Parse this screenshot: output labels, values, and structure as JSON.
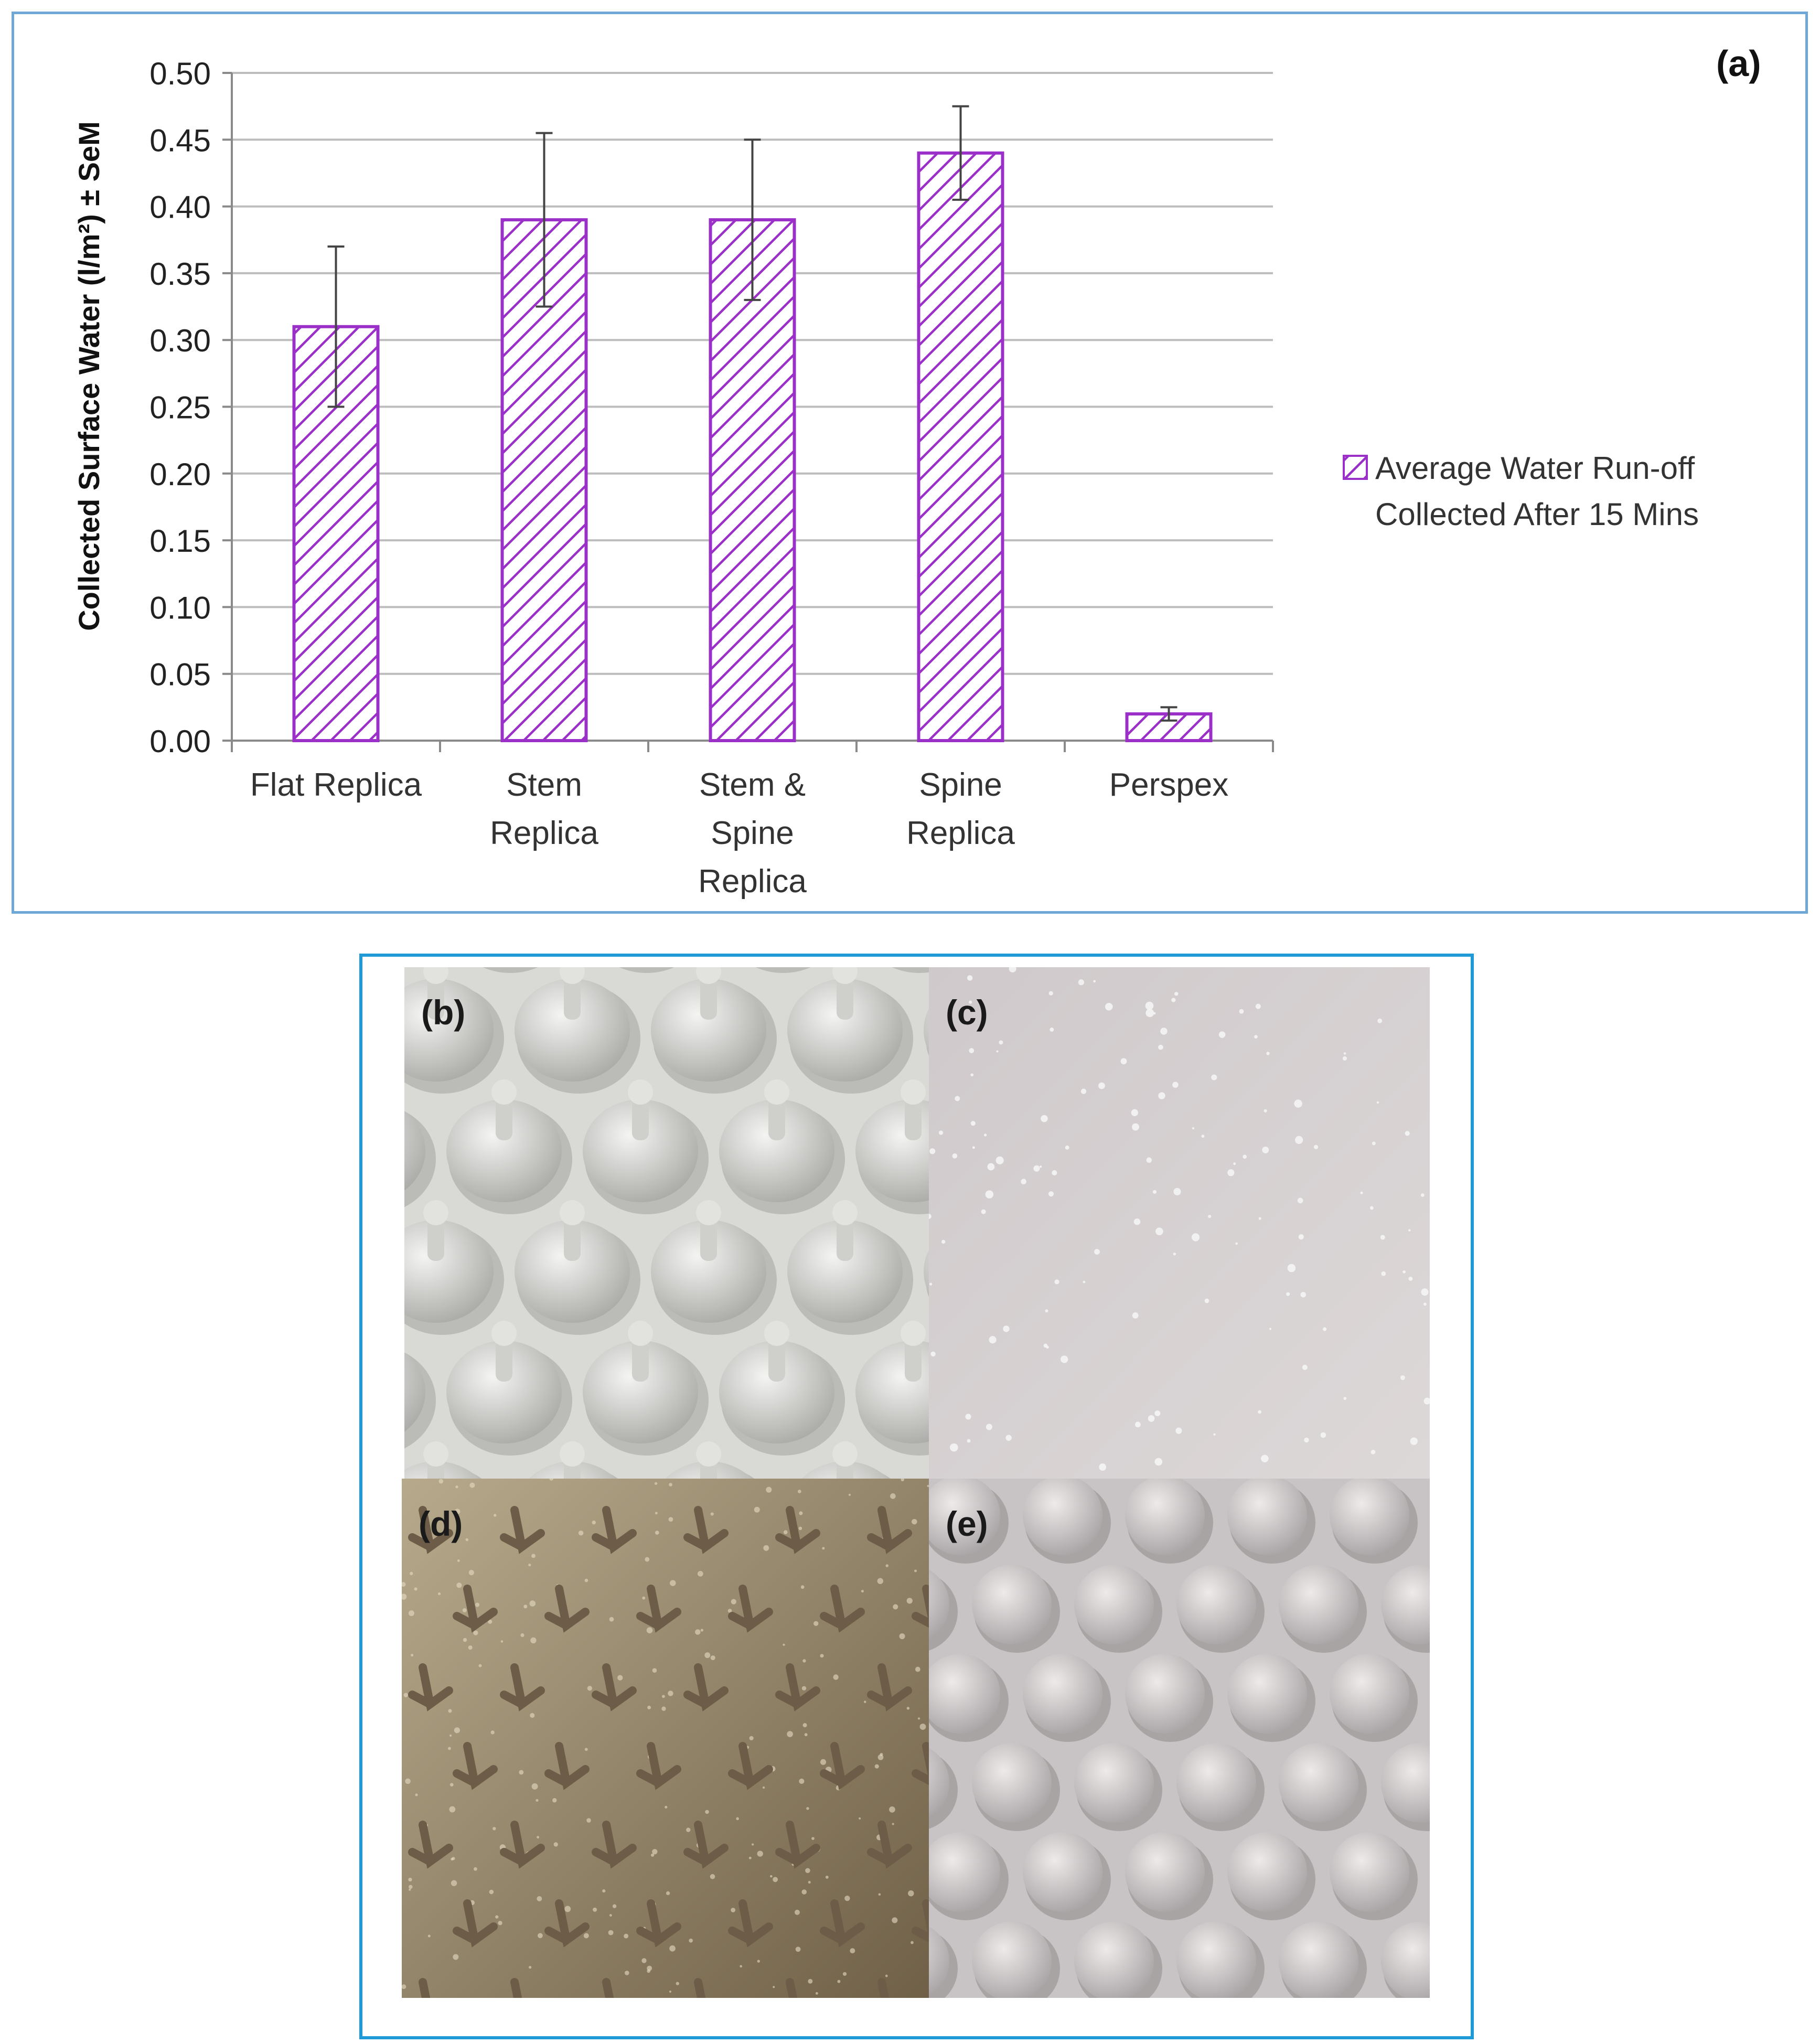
{
  "chart_data": {
    "type": "bar",
    "panel_label": "(a)",
    "ylabel": "Collected Surface Water (l/m²) ± SeM",
    "xlabel": "",
    "ylim": [
      0,
      0.5
    ],
    "y_ticks": [
      "0.00",
      "0.05",
      "0.10",
      "0.15",
      "0.20",
      "0.25",
      "0.30",
      "0.35",
      "0.40",
      "0.45",
      "0.50"
    ],
    "tick_values": [
      0,
      0.05,
      0.1,
      0.15,
      0.2,
      0.25,
      0.3,
      0.35,
      0.4,
      0.45,
      0.5
    ],
    "grid": true,
    "legend_position": "right",
    "categories": [
      [
        "Flat Replica"
      ],
      [
        "Stem",
        "Replica"
      ],
      [
        "Stem &",
        "Spine",
        "Replica"
      ],
      [
        "Spine",
        "Replica"
      ],
      [
        "Perspex"
      ]
    ],
    "series": [
      {
        "name": [
          "Average Water Run-off",
          "Collected After 15 Mins"
        ],
        "values": [
          0.31,
          0.39,
          0.39,
          0.44,
          0.02
        ],
        "error": [
          0.06,
          0.065,
          0.06,
          0.035,
          0.005
        ],
        "color": "#9a30c8",
        "pattern": "diagonal-hatch"
      }
    ]
  },
  "photos": [
    {
      "label": "(b)",
      "kind": "stem-spine"
    },
    {
      "label": "(c)",
      "kind": "flat"
    },
    {
      "label": "(d)",
      "kind": "spine"
    },
    {
      "label": "(e)",
      "kind": "stem"
    }
  ],
  "colors": {
    "chart_border": "#6fa8d6",
    "photo_border": "#1e9ad6",
    "bar_stroke": "#9a30c8",
    "grid": "#bdbdbd"
  }
}
